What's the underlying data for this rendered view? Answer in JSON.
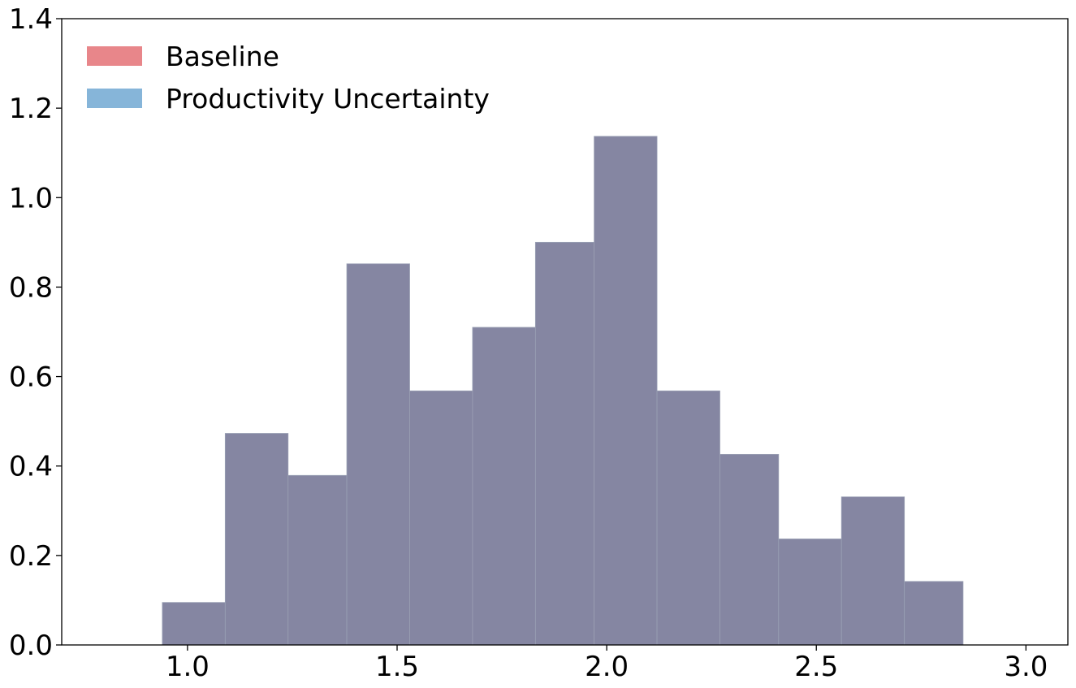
{
  "chart_data": {
    "type": "bar",
    "subtype": "histogram-overlay",
    "title": "",
    "xlabel": "",
    "ylabel": "",
    "xlim": [
      0.7,
      3.1
    ],
    "ylim": [
      0.0,
      1.4
    ],
    "x_ticks": [
      1.0,
      1.5,
      2.0,
      2.5,
      3.0
    ],
    "x_tick_labels": [
      "1.0",
      "1.5",
      "2.0",
      "2.5",
      "3.0"
    ],
    "y_ticks": [
      0.0,
      0.2,
      0.4,
      0.6,
      0.8,
      1.0,
      1.2,
      1.4
    ],
    "y_tick_labels": [
      "0.0",
      "0.2",
      "0.4",
      "0.6",
      "0.8",
      "1.0",
      "1.2",
      "1.4"
    ],
    "grid": false,
    "legend_position": "top-left",
    "bin_edges": [
      0.94,
      1.09,
      1.24,
      1.38,
      1.53,
      1.68,
      1.83,
      1.97,
      2.12,
      2.27,
      2.41,
      2.56,
      2.71,
      2.85
    ],
    "series": [
      {
        "name": "Baseline",
        "color": "#e8868a",
        "values": [
          0.095,
          0.473,
          0.379,
          0.852,
          0.568,
          0.71,
          0.9,
          1.137,
          0.568,
          0.426,
          0.237,
          0.331,
          0.142
        ]
      },
      {
        "name": "Productivity Uncertainty",
        "color": "#86b5d9",
        "values": [
          0.095,
          0.473,
          0.379,
          0.852,
          0.568,
          0.71,
          0.9,
          1.137,
          0.568,
          0.426,
          0.237,
          0.331,
          0.142
        ]
      }
    ],
    "overlap_color": "#8586a2"
  }
}
